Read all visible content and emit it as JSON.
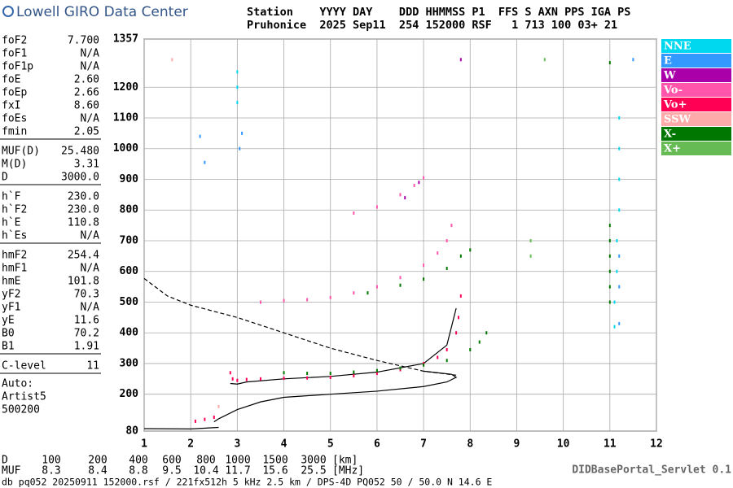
{
  "header": {
    "logo": "Lowell GIRO Data Center",
    "labels": "Station    YYYY DAY    DDD HHMMSS P1  FFS S AXN PPS IGA PS",
    "values": "Pruhonice  2025 Sep11  254 152000 RSF   1 713 100 03+ 21"
  },
  "parameters": [
    [
      {
        "name": "foF2",
        "value": "7.700"
      },
      {
        "name": "foF1",
        "value": "N/A"
      },
      {
        "name": "foF1p",
        "value": "N/A"
      },
      {
        "name": "foE",
        "value": "2.60"
      },
      {
        "name": "foEp",
        "value": "2.66"
      },
      {
        "name": "fxI",
        "value": "8.60"
      },
      {
        "name": "foEs",
        "value": "N/A"
      },
      {
        "name": "fmin",
        "value": "2.05"
      }
    ],
    [
      {
        "name": "MUF(D)",
        "value": "25.480"
      },
      {
        "name": "M(D)",
        "value": "3.31"
      },
      {
        "name": "D",
        "value": "3000.0"
      }
    ],
    [
      {
        "name": "h`F",
        "value": "230.0"
      },
      {
        "name": "h`F2",
        "value": "230.0"
      },
      {
        "name": "h`E",
        "value": "110.8"
      },
      {
        "name": "h`Es",
        "value": "N/A"
      }
    ],
    [
      {
        "name": "hmF2",
        "value": "254.4"
      },
      {
        "name": "hmF1",
        "value": "N/A"
      },
      {
        "name": "hmE",
        "value": "101.8"
      },
      {
        "name": "yF2",
        "value": "70.3"
      },
      {
        "name": "yF1",
        "value": "N/A"
      },
      {
        "name": "yE",
        "value": "11.6"
      },
      {
        "name": "B0",
        "value": "70.2"
      },
      {
        "name": "B1",
        "value": "1.91"
      }
    ],
    [
      {
        "name": "C-level",
        "value": "11"
      }
    ]
  ],
  "auto": [
    "Auto:",
    "Artist5",
    "500200"
  ],
  "chart_data": {
    "type": "scatter",
    "xlim": [
      1,
      12
    ],
    "xticks": [
      1,
      2,
      3,
      4,
      5,
      6,
      7,
      8,
      9,
      10,
      11,
      12
    ],
    "ylim": [
      80,
      1357
    ],
    "yticks": [
      80,
      200,
      300,
      400,
      500,
      600,
      700,
      800,
      900,
      1000,
      1100,
      1200,
      1357
    ],
    "grid": true,
    "series": [
      {
        "name": "NNE",
        "color": "#00d8f0",
        "x": [
          11.1,
          11.1,
          11.15,
          11.15,
          11.2,
          11.2,
          11.2,
          11.2,
          3.0,
          3.0,
          3.0
        ],
        "y": [
          420,
          500,
          600,
          700,
          800,
          900,
          1000,
          1100,
          1150,
          1200,
          1250
        ]
      },
      {
        "name": "E",
        "color": "#3399ff",
        "x": [
          11.2,
          11.2,
          11.2,
          2.2,
          2.3,
          3.1,
          3.05,
          11.5
        ],
        "y": [
          430,
          550,
          650,
          1040,
          955,
          1050,
          1000,
          1290
        ]
      },
      {
        "name": "W",
        "color": "#aa00aa",
        "x": [
          7.8,
          6.9,
          6.6
        ],
        "y": [
          1290,
          890,
          840
        ]
      },
      {
        "name": "Vo-",
        "color": "#ff55aa",
        "x": [
          3.5,
          4,
          4.5,
          5,
          5.5,
          6,
          6.5,
          7,
          7.3,
          7.5,
          7.6,
          5.5,
          6,
          6.5,
          6.8,
          7
        ],
        "y": [
          500,
          505,
          508,
          515,
          530,
          550,
          580,
          620,
          660,
          700,
          750,
          790,
          810,
          850,
          880,
          905
        ]
      },
      {
        "name": "Vo+",
        "color": "#ff0055",
        "x": [
          2.1,
          2.3,
          2.5,
          2.85,
          2.9,
          3.0,
          3.2,
          3.5,
          4,
          4.5,
          5,
          5.5,
          6,
          6.5,
          7,
          7.3,
          7.5,
          7.7,
          7.75,
          7.8
        ],
        "y": [
          112,
          118,
          125,
          270,
          250,
          245,
          248,
          250,
          252,
          253,
          255,
          260,
          268,
          280,
          300,
          320,
          345,
          400,
          450,
          520
        ]
      },
      {
        "name": "SSW",
        "color": "#ffaaaa",
        "x": [
          1.6,
          2.6
        ],
        "y": [
          1290,
          160
        ]
      },
      {
        "name": "X-",
        "color": "#007700",
        "x": [
          4,
          4.5,
          5,
          5.5,
          6,
          6.5,
          7,
          7.5,
          8,
          8.2,
          8.35,
          5.8,
          6.5,
          7,
          7.5,
          7.8,
          8,
          11,
          11,
          11,
          11,
          11,
          11,
          11
        ],
        "y": [
          270,
          268,
          268,
          272,
          277,
          285,
          295,
          310,
          345,
          370,
          400,
          530,
          555,
          575,
          610,
          650,
          670,
          500,
          550,
          600,
          650,
          700,
          750,
          1280
        ]
      },
      {
        "name": "X+",
        "color": "#66bb55",
        "x": [
          9.3,
          9.3,
          9.6
        ],
        "y": [
          700,
          650,
          1290
        ]
      }
    ],
    "lines": [
      {
        "style": "solid",
        "x": [
          1,
          2,
          2.6
        ],
        "y": [
          88,
          87,
          92
        ]
      },
      {
        "style": "solid",
        "x": [
          2.5,
          2.6,
          3,
          3.5,
          4,
          5,
          6,
          7,
          7.5,
          7.7,
          7.6,
          7
        ],
        "y": [
          110,
          120,
          150,
          175,
          190,
          200,
          210,
          225,
          240,
          255,
          265,
          275
        ]
      },
      {
        "style": "solid",
        "x": [
          2.85,
          3,
          3.2,
          4,
          5,
          6,
          7,
          7.5,
          7.7
        ],
        "y": [
          235,
          233,
          240,
          250,
          258,
          272,
          300,
          360,
          480
        ]
      },
      {
        "style": "dashed",
        "x": [
          1,
          1.5,
          2,
          3,
          4,
          5,
          6,
          7,
          7.7
        ],
        "y": [
          577,
          520,
          490,
          450,
          400,
          350,
          310,
          275,
          262
        ]
      }
    ]
  },
  "footer": {
    "d_label": "D",
    "d_values": [
      "100",
      "200",
      "400",
      "600",
      "800",
      "1000",
      "1500",
      "3000"
    ],
    "d_unit": "[km]",
    "muf_label": "MUF",
    "muf_values": [
      "8.3",
      "8.4",
      "8.8",
      "9.5",
      "10.4",
      "11.7",
      "15.6",
      "25.5"
    ],
    "muf_unit": "[MHz]",
    "source": "db pq052 20250911 152000.rsf / 221fx512h 5 kHz 2.5 km / DPS-4D PQ052 50 / 50.0 N 14.6 E",
    "servlet": "DIDBasePortal_Servlet 0.1"
  }
}
